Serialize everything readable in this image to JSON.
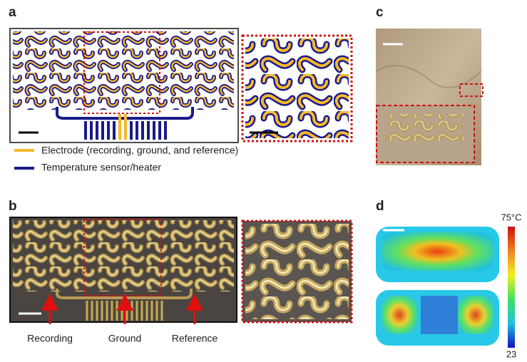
{
  "panels": {
    "a": {
      "label": "a",
      "legend": [
        "Electrode (recording, ground, and reference)",
        "Temperature sensor/heater"
      ]
    },
    "b": {
      "label": "b",
      "annotations": [
        "Recording",
        "Ground",
        "Reference"
      ]
    },
    "c": {
      "label": "c"
    },
    "d": {
      "label": "d",
      "colorbar": {
        "max_label": "75°C",
        "min_label": "23"
      }
    }
  }
}
